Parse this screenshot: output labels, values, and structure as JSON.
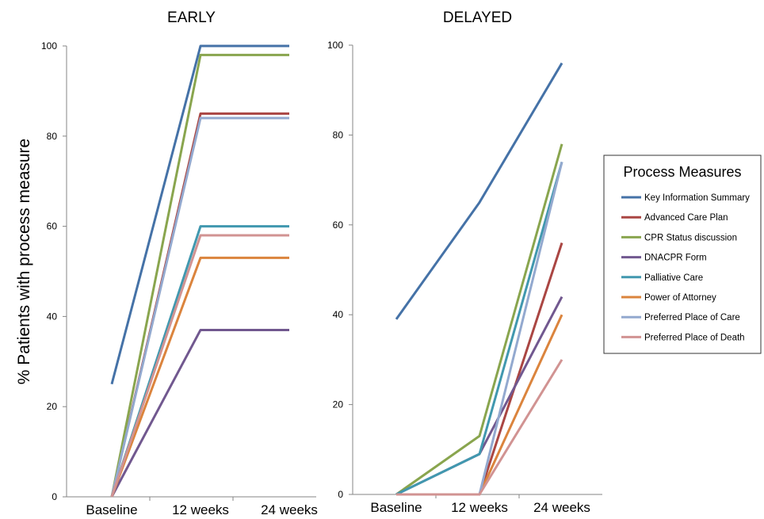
{
  "y_axis_label": "% Patients with process measure",
  "legend": {
    "title": "Process Measures"
  },
  "series_styles": [
    {
      "name": "Key Information Summary",
      "color": "#4572A7"
    },
    {
      "name": "Advanced Care Plan",
      "color": "#AA4643"
    },
    {
      "name": "CPR Status discussion",
      "color": "#89A54E"
    },
    {
      "name": "DNACPR Form",
      "color": "#71588F"
    },
    {
      "name": "Palliative Care",
      "color": "#4198AF"
    },
    {
      "name": "Power of Attorney",
      "color": "#DB843D"
    },
    {
      "name": "Preferred Place of Care",
      "color": "#93A9CF"
    },
    {
      "name": "Preferred Place of Death",
      "color": "#D19392"
    }
  ],
  "chart_data": [
    {
      "type": "line",
      "title": "EARLY",
      "categories": [
        "Baseline",
        "12 weeks",
        "24 weeks"
      ],
      "ylabel": "% Patients with process measure",
      "ylim": [
        0,
        100
      ],
      "yticks": [
        "0",
        "20",
        "40",
        "60",
        "80",
        "100"
      ],
      "grid": false,
      "legend_position": "right",
      "series": [
        {
          "name": "Key Information Summary",
          "values": [
            25,
            100,
            100
          ]
        },
        {
          "name": "Advanced Care Plan",
          "values": [
            0,
            85,
            85
          ]
        },
        {
          "name": "CPR Status discussion",
          "values": [
            0,
            98,
            98
          ]
        },
        {
          "name": "DNACPR Form",
          "values": [
            0,
            37,
            37
          ]
        },
        {
          "name": "Palliative Care",
          "values": [
            0,
            60,
            60
          ]
        },
        {
          "name": "Power of Attorney",
          "values": [
            0,
            53,
            53
          ]
        },
        {
          "name": "Preferred Place of Care",
          "values": [
            0,
            84,
            84
          ]
        },
        {
          "name": "Preferred Place of Death",
          "values": [
            0,
            58,
            58
          ]
        }
      ]
    },
    {
      "type": "line",
      "title": "DELAYED",
      "categories": [
        "Baseline",
        "12 weeks",
        "24 weeks"
      ],
      "ylim": [
        0,
        100
      ],
      "yticks": [
        "0",
        "20",
        "40",
        "60",
        "80",
        "100"
      ],
      "grid": false,
      "legend_position": "right",
      "series": [
        {
          "name": "Key Information Summary",
          "values": [
            39,
            65,
            96
          ]
        },
        {
          "name": "Advanced Care Plan",
          "values": [
            0,
            0,
            56
          ]
        },
        {
          "name": "CPR Status discussion",
          "values": [
            0,
            13,
            78
          ]
        },
        {
          "name": "DNACPR Form",
          "values": [
            0,
            9,
            44
          ]
        },
        {
          "name": "Palliative Care",
          "values": [
            0,
            9,
            74
          ]
        },
        {
          "name": "Power of Attorney",
          "values": [
            0,
            0,
            40
          ]
        },
        {
          "name": "Preferred Place of Care",
          "values": [
            0,
            0,
            74
          ]
        },
        {
          "name": "Preferred Place of Death",
          "values": [
            0,
            0,
            30
          ]
        }
      ]
    }
  ]
}
